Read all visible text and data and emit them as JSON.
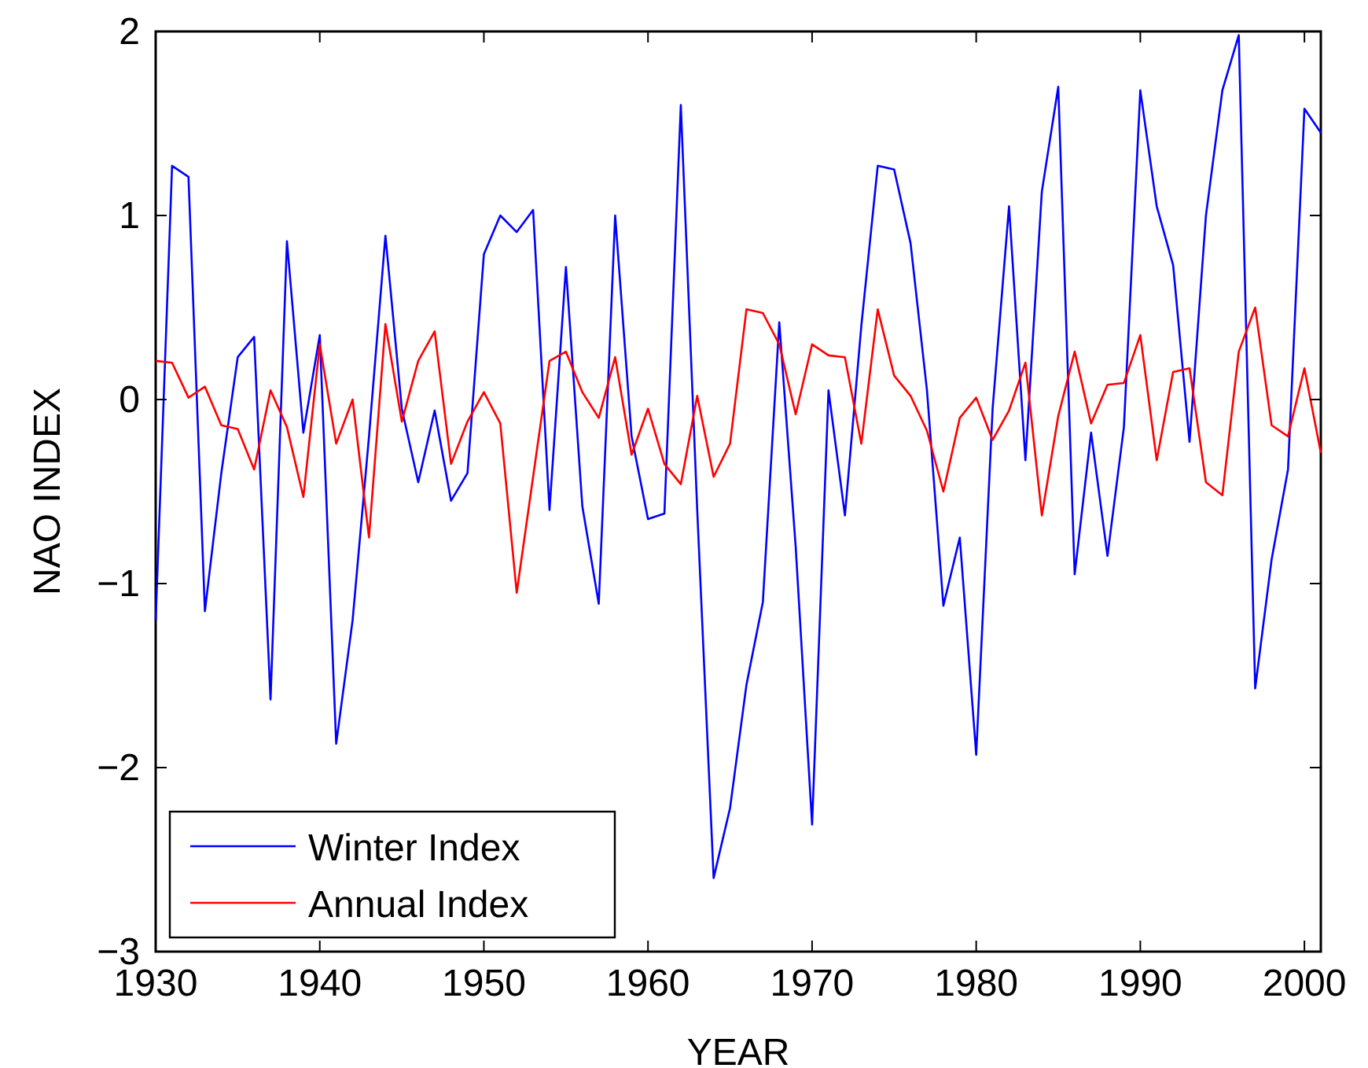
{
  "chart_data": {
    "type": "line",
    "xlabel": "YEAR",
    "ylabel": "NAO INDEX",
    "xlim": [
      1930,
      2001
    ],
    "xticks": [
      1930,
      1940,
      1950,
      1960,
      1970,
      1980,
      1990,
      2000
    ],
    "ylim": [
      -3,
      2
    ],
    "yticks": [
      {
        "value": -3,
        "label": "−3"
      },
      {
        "value": -2,
        "label": "−2"
      },
      {
        "value": -1,
        "label": "−1"
      },
      0,
      1,
      2
    ],
    "legend": "bottom left",
    "grid": false,
    "marker": "none",
    "line_style": "solid",
    "x": [
      1930,
      1931,
      1932,
      1933,
      1934,
      1935,
      1936,
      1937,
      1938,
      1939,
      1940,
      1941,
      1942,
      1943,
      1944,
      1945,
      1946,
      1947,
      1948,
      1949,
      1950,
      1951,
      1952,
      1953,
      1954,
      1955,
      1956,
      1957,
      1958,
      1959,
      1960,
      1961,
      1962,
      1963,
      1964,
      1965,
      1966,
      1967,
      1968,
      1969,
      1970,
      1971,
      1972,
      1973,
      1974,
      1975,
      1976,
      1977,
      1978,
      1979,
      1980,
      1981,
      1982,
      1983,
      1984,
      1985,
      1986,
      1987,
      1988,
      1989,
      1990,
      1991,
      1992,
      1993,
      1994,
      1995,
      1996,
      1997,
      1998,
      1999,
      2000,
      2001
    ],
    "series": [
      {
        "name": "Winter Index",
        "color": "#0000ff",
        "values": [
          -1.2,
          1.27,
          1.21,
          -1.15,
          -0.4,
          0.23,
          0.34,
          -1.63,
          0.86,
          -0.18,
          0.35,
          -1.87,
          -1.2,
          -0.2,
          0.89,
          -0.05,
          -0.45,
          -0.06,
          -0.55,
          -0.4,
          0.79,
          1.0,
          0.91,
          1.03,
          -0.6,
          0.72,
          -0.58,
          -1.11,
          1.0,
          -0.2,
          -0.65,
          -0.62,
          1.6,
          -0.6,
          -2.6,
          -2.22,
          -1.55,
          -1.1,
          0.42,
          -0.8,
          -2.31,
          0.05,
          -0.63,
          0.4,
          1.27,
          1.25,
          0.85,
          0.05,
          -1.12,
          -0.75,
          -1.93,
          -0.05,
          1.05,
          -0.33,
          1.13,
          1.7,
          -0.95,
          -0.18,
          -0.85,
          -0.15,
          1.68,
          1.05,
          0.73,
          -0.23,
          1.0,
          1.68,
          1.98,
          -1.57,
          -0.87,
          -0.38,
          1.58,
          1.45
        ]
      },
      {
        "name": "Annual Index",
        "color": "#ff0000",
        "values": [
          0.21,
          0.2,
          0.01,
          0.07,
          -0.14,
          -0.16,
          -0.38,
          0.05,
          -0.15,
          -0.53,
          0.3,
          -0.24,
          0.0,
          -0.75,
          0.41,
          -0.12,
          0.21,
          0.37,
          -0.35,
          -0.12,
          0.04,
          -0.13,
          -1.05,
          -0.42,
          0.21,
          0.26,
          0.04,
          -0.1,
          0.23,
          -0.3,
          -0.05,
          -0.35,
          -0.46,
          0.02,
          -0.42,
          -0.24,
          0.49,
          0.47,
          0.3,
          -0.08,
          0.3,
          0.24,
          0.23,
          -0.24,
          0.49,
          0.13,
          0.02,
          -0.17,
          -0.5,
          -0.1,
          0.01,
          -0.22,
          -0.06,
          0.2,
          -0.63,
          -0.09,
          0.26,
          -0.13,
          0.08,
          0.09,
          0.35,
          -0.33,
          0.15,
          0.17,
          -0.45,
          -0.52,
          0.26,
          0.5,
          -0.14,
          -0.2,
          0.17,
          -0.29
        ]
      }
    ]
  }
}
